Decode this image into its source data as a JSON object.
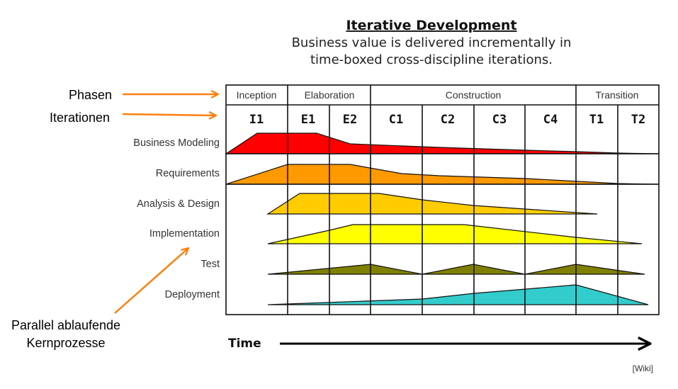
{
  "title": "Iterative Development",
  "subtitle_lines": [
    "Business value is delivered incrementally in",
    "time-boxed cross-discipline iterations."
  ],
  "annotations": {
    "phases": "Phasen",
    "iterations": "Iterationen",
    "parallel_line1": "Parallel ablaufende",
    "parallel_line2": "Kernprozesse",
    "arrow_color": "#ff7f0e"
  },
  "phases": [
    "Inception",
    "Elaboration",
    "Construction",
    "Transition"
  ],
  "iterations": [
    "I1",
    "E1",
    "E2",
    "C1",
    "C2",
    "C3",
    "C4",
    "T1",
    "T2"
  ],
  "disciplines": [
    {
      "name": "Business Modeling",
      "color": "#ff0000"
    },
    {
      "name": "Requirements",
      "color": "#ff9900"
    },
    {
      "name": "Analysis & Design",
      "color": "#ffcc00"
    },
    {
      "name": "Implementation",
      "color": "#ffff00"
    },
    {
      "name": "Test",
      "color": "#808000"
    },
    {
      "name": "Deployment",
      "color": "#33cccc"
    }
  ],
  "time_label": "Time",
  "source": "[Wiki]"
}
